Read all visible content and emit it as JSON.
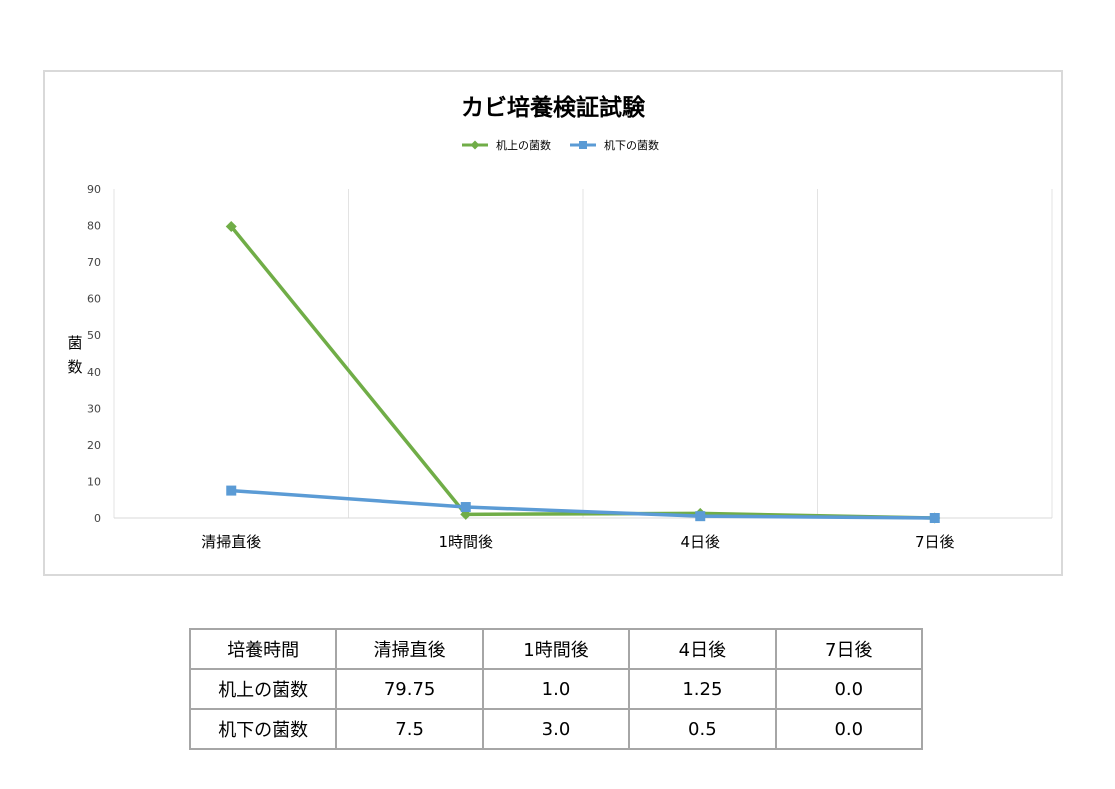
{
  "chart_data": {
    "type": "line",
    "title": "カビ培養検証試験",
    "ylabel": "菌数",
    "xlabel": "",
    "categories": [
      "清掃直後",
      "1時間後",
      "4日後",
      "7日後"
    ],
    "ylim": [
      0,
      90
    ],
    "yticks": [
      "0",
      "10",
      "20",
      "30",
      "40",
      "50",
      "60",
      "70",
      "80",
      "90"
    ],
    "legend_position": "top",
    "grid": "vertical",
    "series": [
      {
        "name": "机上の菌数",
        "values": [
          79.75,
          1.0,
          1.25,
          0.0
        ],
        "color": "#70ad47",
        "marker": "diamond"
      },
      {
        "name": "机下の菌数",
        "values": [
          7.5,
          3.0,
          0.5,
          0.0
        ],
        "color": "#5b9bd5",
        "marker": "square"
      }
    ]
  },
  "table": {
    "header": [
      "培養時間",
      "清掃直後",
      "1時間後",
      "4日後",
      "7日後"
    ],
    "rows": [
      [
        "机上の菌数",
        "79.75",
        "1.0",
        "1.25",
        "0.0"
      ],
      [
        "机下の菌数",
        "7.5",
        "3.0",
        "0.5",
        "0.0"
      ]
    ]
  }
}
